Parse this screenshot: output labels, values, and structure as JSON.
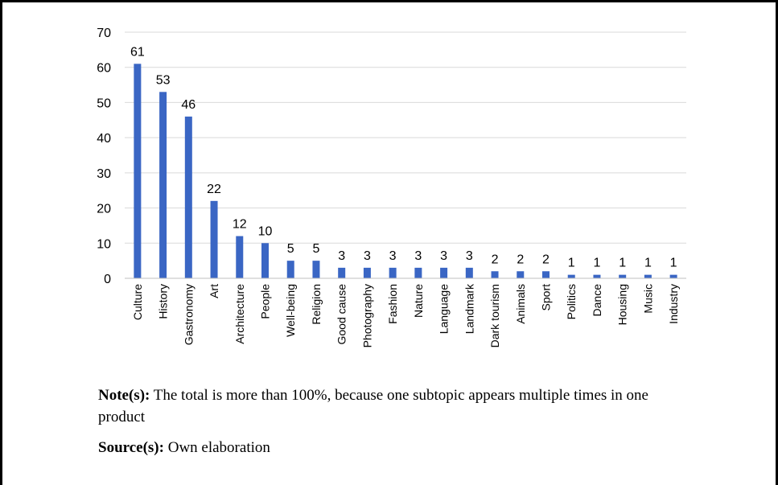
{
  "chart_data": {
    "type": "bar",
    "categories": [
      "Culture",
      "History",
      "Gastronomy",
      "Art",
      "Architecture",
      "People",
      "Well-being",
      "Religion",
      "Good cause",
      "Photography",
      "Fashion",
      "Nature",
      "Language",
      "Landmark",
      "Dark tourism",
      "Animals",
      "Sport",
      "Politics",
      "Dance",
      "Housing",
      "Music",
      "Industry"
    ],
    "values": [
      61,
      53,
      46,
      22,
      12,
      10,
      5,
      5,
      3,
      3,
      3,
      3,
      3,
      3,
      2,
      2,
      2,
      1,
      1,
      1,
      1,
      1
    ],
    "ylim": [
      0,
      70
    ],
    "yticks": [
      0,
      10,
      20,
      30,
      40,
      50,
      60,
      70
    ],
    "grid": true,
    "bar_color": "#3a66c4",
    "data_labels": true
  },
  "notes": {
    "note_label": "Note(s):",
    "note_text": " The total is more than 100%, because one subtopic appears multiple times in one product",
    "source_label": "Source(s):",
    "source_text": " Own elaboration"
  }
}
